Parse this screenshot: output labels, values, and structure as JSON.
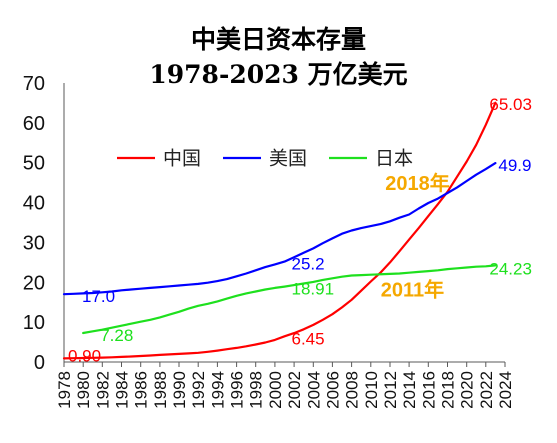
{
  "chart_data": {
    "type": "line",
    "title": "中美日资本存量",
    "subtitle": "1978-2023 万亿美元",
    "xlim": [
      1978,
      2024
    ],
    "ylim": [
      0,
      70
    ],
    "xticks": [
      1978,
      1980,
      1982,
      1984,
      1986,
      1988,
      1990,
      1992,
      1994,
      1996,
      1998,
      2000,
      2002,
      2004,
      2006,
      2008,
      2010,
      2012,
      2014,
      2016,
      2018,
      2020,
      2022,
      2024
    ],
    "yticks": [
      0,
      10,
      20,
      30,
      40,
      50,
      60,
      70
    ],
    "grid": false,
    "legend": "top-left",
    "x": [
      1978,
      1979,
      1980,
      1981,
      1982,
      1983,
      1984,
      1985,
      1986,
      1987,
      1988,
      1989,
      1990,
      1991,
      1992,
      1993,
      1994,
      1995,
      1996,
      1997,
      1998,
      1999,
      2000,
      2001,
      2002,
      2003,
      2004,
      2005,
      2006,
      2007,
      2008,
      2009,
      2010,
      2011,
      2012,
      2013,
      2014,
      2015,
      2016,
      2017,
      2018,
      2019,
      2020,
      2021,
      2022,
      2023
    ],
    "series": [
      {
        "name": "中国",
        "color": "#FF0000",
        "values": [
          0.9,
          0.95,
          1.0,
          1.05,
          1.1,
          1.18,
          1.27,
          1.38,
          1.5,
          1.62,
          1.78,
          1.9,
          2.02,
          2.15,
          2.32,
          2.55,
          2.85,
          3.2,
          3.55,
          3.95,
          4.4,
          4.9,
          5.55,
          6.45,
          7.25,
          8.2,
          9.3,
          10.6,
          12.0,
          13.7,
          15.6,
          17.9,
          20.2,
          22.4,
          25.0,
          27.8,
          30.7,
          33.6,
          36.6,
          39.6,
          42.7,
          46.5,
          50.3,
          54.5,
          59.5,
          65.03
        ]
      },
      {
        "name": "美国",
        "color": "#0000FF",
        "values": [
          17.0,
          17.1,
          17.2,
          17.3,
          17.5,
          17.7,
          18.0,
          18.2,
          18.4,
          18.6,
          18.8,
          19.0,
          19.2,
          19.4,
          19.6,
          19.9,
          20.3,
          20.8,
          21.5,
          22.2,
          23.0,
          23.8,
          24.5,
          25.2,
          26.3,
          27.4,
          28.5,
          29.8,
          31.0,
          32.2,
          33.0,
          33.6,
          34.1,
          34.6,
          35.3,
          36.2,
          37.0,
          38.5,
          39.9,
          41.0,
          42.4,
          43.8,
          45.4,
          47.0,
          48.4,
          49.9
        ]
      },
      {
        "name": "日本",
        "color": "#1EE01E",
        "values": [
          null,
          null,
          7.28,
          7.7,
          8.1,
          8.6,
          9.1,
          9.6,
          10.1,
          10.6,
          11.2,
          11.9,
          12.6,
          13.4,
          14.1,
          14.6,
          15.2,
          15.9,
          16.6,
          17.2,
          17.7,
          18.2,
          18.6,
          18.91,
          19.3,
          19.7,
          20.1,
          20.6,
          21.0,
          21.4,
          21.7,
          21.8,
          21.9,
          22.0,
          22.1,
          22.2,
          22.4,
          22.6,
          22.8,
          23.0,
          23.3,
          23.5,
          23.7,
          23.9,
          24.0,
          24.23
        ]
      }
    ],
    "data_labels": [
      {
        "series": 0,
        "x": 1978,
        "text": "0.90"
      },
      {
        "series": 0,
        "x": 2001,
        "text": "6.45"
      },
      {
        "series": 0,
        "x": 2023,
        "text": "65.03"
      },
      {
        "series": 1,
        "x": 1978,
        "text": "17.0"
      },
      {
        "series": 1,
        "x": 2001,
        "text": "25.2"
      },
      {
        "series": 1,
        "x": 2023,
        "text": "49.9"
      },
      {
        "series": 2,
        "x": 1980,
        "text": "7.28"
      },
      {
        "series": 2,
        "x": 2001,
        "text": "18.91"
      },
      {
        "series": 2,
        "x": 2023,
        "text": "24.23"
      }
    ],
    "annotations": [
      {
        "text": "2018年",
        "x": 2018,
        "color": "#F5A800"
      },
      {
        "text": "2011年",
        "x": 2011,
        "color": "#F5A800"
      }
    ]
  }
}
